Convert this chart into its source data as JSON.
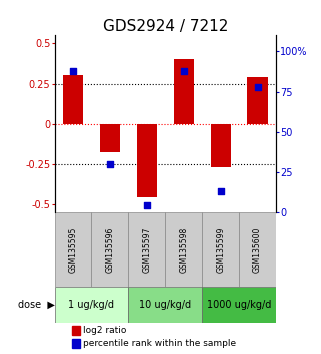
{
  "title": "GDS2924 / 7212",
  "samples": [
    "GSM135595",
    "GSM135596",
    "GSM135597",
    "GSM135598",
    "GSM135599",
    "GSM135600"
  ],
  "log2_ratio": [
    0.3,
    -0.18,
    -0.46,
    0.4,
    -0.27,
    0.29
  ],
  "percentile_rank": [
    88,
    30,
    4,
    88,
    13,
    78
  ],
  "left_ylim": [
    -0.55,
    0.55
  ],
  "right_ylim": [
    0,
    110
  ],
  "right_yticks": [
    0,
    25,
    50,
    75,
    100
  ],
  "right_yticklabels": [
    "0",
    "25",
    "50",
    "75",
    "100%"
  ],
  "left_yticks": [
    -0.5,
    -0.25,
    0,
    0.25,
    0.5
  ],
  "hlines_black": [
    0.25,
    -0.25
  ],
  "hline_red": 0,
  "bar_color": "#cc0000",
  "dot_color": "#0000cc",
  "dose_groups": [
    {
      "label": "1 ug/kg/d",
      "samples": [
        0,
        1
      ],
      "color": "#ccffcc"
    },
    {
      "label": "10 ug/kg/d",
      "samples": [
        2,
        3
      ],
      "color": "#88dd88"
    },
    {
      "label": "1000 ug/kg/d",
      "samples": [
        4,
        5
      ],
      "color": "#44bb44"
    }
  ],
  "dose_label": "dose",
  "legend_bar_label": "log2 ratio",
  "legend_dot_label": "percentile rank within the sample",
  "sample_box_color": "#cccccc",
  "title_fontsize": 11,
  "tick_fontsize": 7,
  "label_fontsize": 7,
  "sample_fontsize": 5.5,
  "dose_fontsize": 7,
  "legend_fontsize": 6.5
}
